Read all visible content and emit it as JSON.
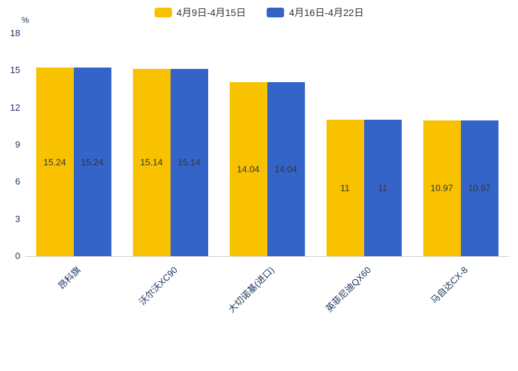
{
  "legend": {
    "series1": "4月9日-4月15日",
    "series2": "4月16日-4月22日"
  },
  "y_axis": {
    "unit": "%",
    "ticks": [
      0,
      3,
      6,
      9,
      12,
      15,
      18
    ]
  },
  "colors": {
    "series1": "#F9C201",
    "series2": "#3564C8",
    "axis_label": "#16335b",
    "axis_line": "#cfcfcf",
    "bar_value_label": "#333333"
  },
  "chart_data": {
    "type": "bar",
    "categories": [
      "昂科旗",
      "沃尔沃XC90",
      "大切诺基(进口)",
      "英菲尼迪QX60",
      "马自达CX-8"
    ],
    "series": [
      {
        "name": "4月9日-4月15日",
        "values": [
          15.24,
          15.14,
          14.04,
          11,
          10.97
        ]
      },
      {
        "name": "4月16日-4月22日",
        "values": [
          15.24,
          15.14,
          14.04,
          11,
          10.97
        ]
      }
    ],
    "title": "",
    "xlabel": "",
    "ylabel": "%",
    "ylim": [
      0,
      18
    ],
    "grid": false,
    "legend_position": "top",
    "value_labels": "inside-center"
  }
}
